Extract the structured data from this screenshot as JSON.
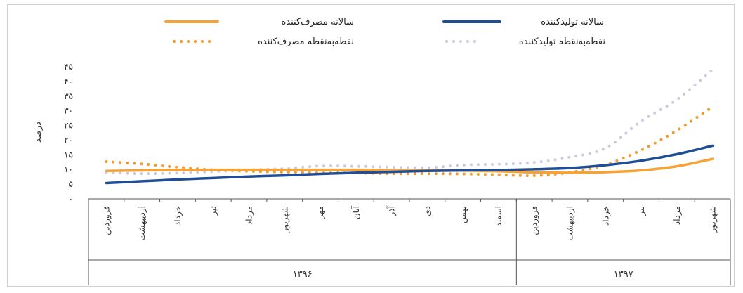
{
  "chart_data": {
    "type": "line",
    "ylabel": "درصد",
    "ylim": [
      0,
      45
    ],
    "yticks": [
      "۰",
      "۵",
      "۱۰",
      "۱۵",
      "۲۰",
      "۲۵",
      "۳۰",
      "۳۵",
      "۴۰",
      "۴۵"
    ],
    "categories": [
      "فروردین",
      "اردیبهشت",
      "خرداد",
      "تیر",
      "مرداد",
      "شهریور",
      "مهر",
      "آبان",
      "آذر",
      "دی",
      "بهمن",
      "اسفند",
      "فروردین",
      "اردیبهشت",
      "خرداد",
      "تیر",
      "مرداد",
      "شهریور"
    ],
    "groups": [
      {
        "label": "۱۳۹۶",
        "start": 0,
        "end": 11
      },
      {
        "label": "۱۳۹۷",
        "start": 12,
        "end": 17
      }
    ],
    "legend_placement": "top",
    "series": [
      {
        "name": "سالانه مصرف‌کننده",
        "style": "solid",
        "color": "#F7A234",
        "values": [
          9.5,
          9.7,
          9.8,
          9.9,
          9.9,
          9.9,
          9.9,
          9.9,
          9.8,
          9.7,
          9.6,
          9.4,
          9.0,
          8.9,
          9.1,
          9.7,
          11.1,
          13.6
        ]
      },
      {
        "name": "سالانه تولیدکننده",
        "style": "solid",
        "color": "#1F4E96",
        "values": [
          5.4,
          6.0,
          6.6,
          7.1,
          7.6,
          8.0,
          8.5,
          8.9,
          9.2,
          9.5,
          9.7,
          9.8,
          10.1,
          10.5,
          11.5,
          13.0,
          15.2,
          18.1
        ]
      },
      {
        "name": "نقطه‌به‌نقطه مصرف‌کننده",
        "style": "dotted",
        "color": "#F39A2B",
        "values": [
          12.7,
          11.9,
          10.8,
          9.9,
          9.4,
          9.1,
          8.9,
          8.8,
          8.6,
          8.6,
          8.5,
          8.2,
          7.9,
          9.0,
          11.6,
          16.6,
          23.3,
          31.4
        ]
      },
      {
        "name": "نقطه‌به‌نقطه تولیدکننده",
        "style": "dotted",
        "color": "#C9CCE0",
        "values": [
          8.9,
          8.6,
          8.8,
          9.3,
          9.9,
          10.3,
          11.2,
          11.1,
          10.8,
          10.6,
          11.5,
          11.8,
          12.4,
          14.2,
          17.3,
          26.5,
          33.8,
          44.0
        ]
      }
    ]
  }
}
